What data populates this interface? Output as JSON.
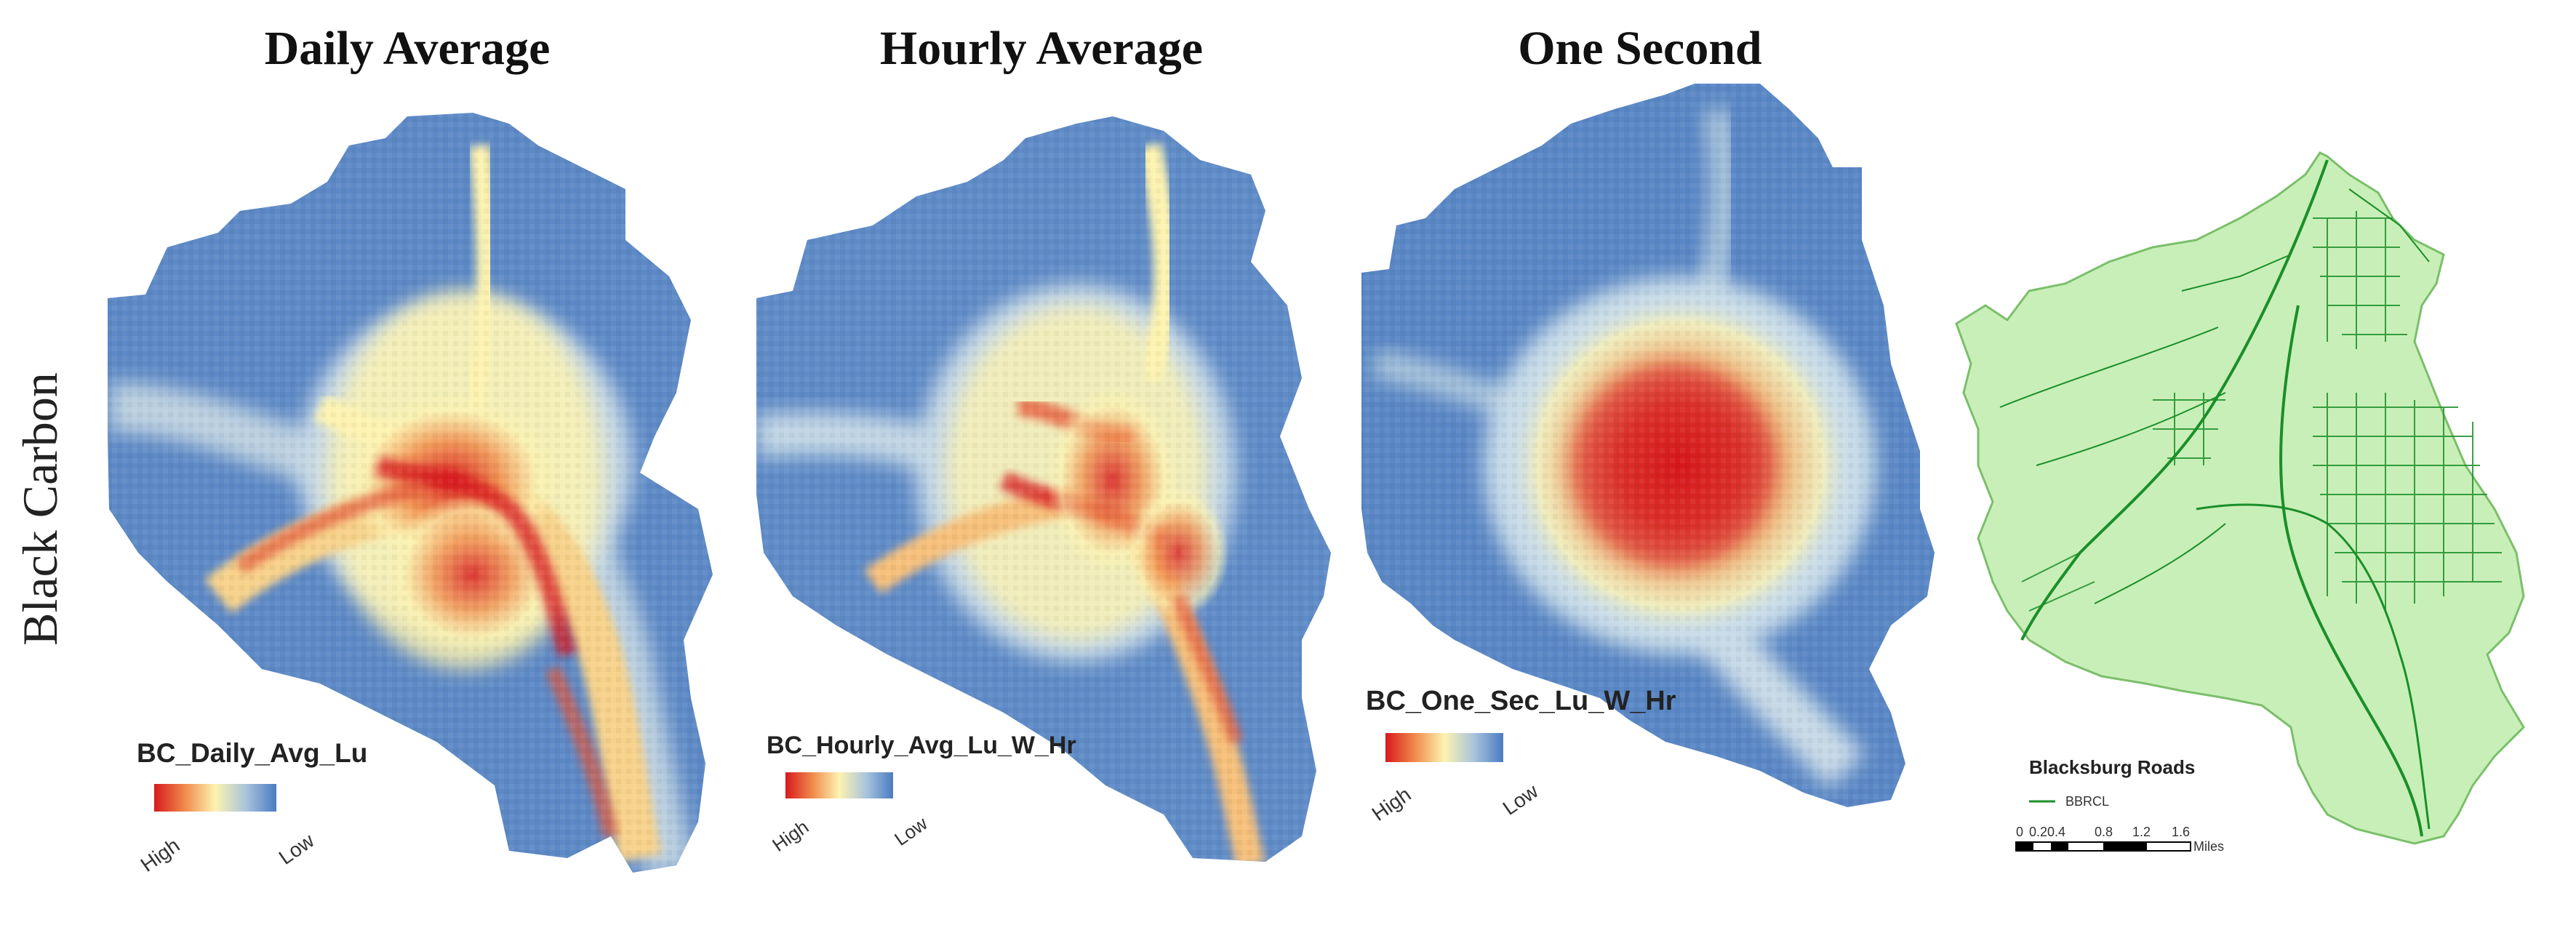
{
  "row_label": "Black Carbon",
  "panels": [
    {
      "title": "Daily Average",
      "legend": {
        "title": "BC_Daily_Avg_Lu",
        "high_label": "High",
        "low_label": "Low"
      }
    },
    {
      "title": "Hourly Average",
      "legend": {
        "title": "BC_Hourly_Avg_Lu_W_Hr",
        "high_label": "High",
        "low_label": "Low"
      }
    },
    {
      "title": "One Second",
      "legend": {
        "title": "BC_One_Sec_Lu_W_Hr",
        "high_label": "High",
        "low_label": "Low"
      }
    }
  ],
  "roads_map": {
    "legend_title": "Blacksburg Roads",
    "legend_item": "BBRCL",
    "scale_ticks": [
      "0",
      "0.20.4",
      "0.8",
      "1.2",
      "1.6"
    ],
    "scale_unit": "Miles"
  },
  "colors": {
    "high": "#d7191c",
    "mid": "#fdf3b0",
    "low": "#4a7cc2",
    "area_fill": "#c9efb8",
    "area_stroke": "#7bbf6a",
    "road": "#1a8f2a"
  }
}
